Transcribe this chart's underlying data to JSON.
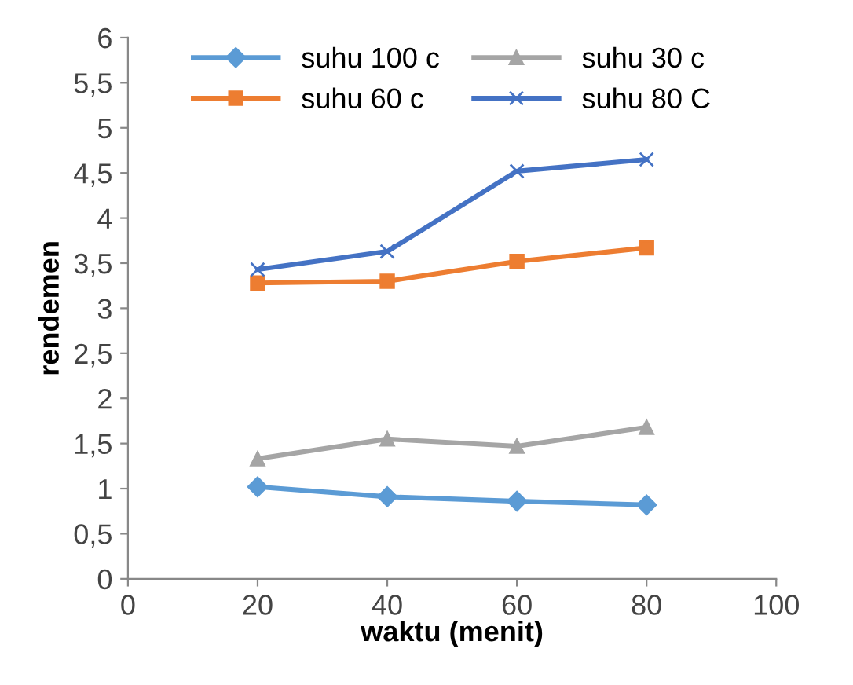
{
  "chart_data": {
    "type": "line",
    "xlabel": "waktu (menit)",
    "ylabel": "rendemen",
    "x": [
      20,
      40,
      60,
      80
    ],
    "series": [
      {
        "name": "suhu 100 c",
        "color": "#5b9bd5",
        "marker": "diamond",
        "values": [
          1.02,
          0.91,
          0.86,
          0.82
        ]
      },
      {
        "name": "suhu 60 c",
        "color": "#ed7d31",
        "marker": "square",
        "values": [
          3.28,
          3.3,
          3.52,
          3.67
        ]
      },
      {
        "name": "suhu 30 c",
        "color": "#a5a5a5",
        "marker": "triangle",
        "values": [
          1.33,
          1.55,
          1.47,
          1.68
        ]
      },
      {
        "name": "suhu 80 C",
        "color": "#4472c4",
        "marker": "cross",
        "values": [
          3.43,
          3.63,
          4.52,
          4.65
        ]
      }
    ],
    "xlim": [
      0,
      100
    ],
    "xticks": [
      0,
      20,
      40,
      60,
      80,
      100
    ],
    "ylim": [
      0,
      6
    ],
    "yticks": [
      0,
      {
        "value": 0.5,
        "label": "0,5"
      },
      1,
      {
        "value": 1.5,
        "label": "1,5"
      },
      2,
      {
        "value": 2.5,
        "label": "2,5"
      },
      3,
      {
        "value": 3.5,
        "label": "3,5"
      },
      4,
      {
        "value": 4.5,
        "label": "4,5"
      },
      5,
      {
        "value": 5.5,
        "label": "5,5"
      },
      6
    ],
    "grid": false,
    "legend": "top",
    "line_style": "solid"
  }
}
